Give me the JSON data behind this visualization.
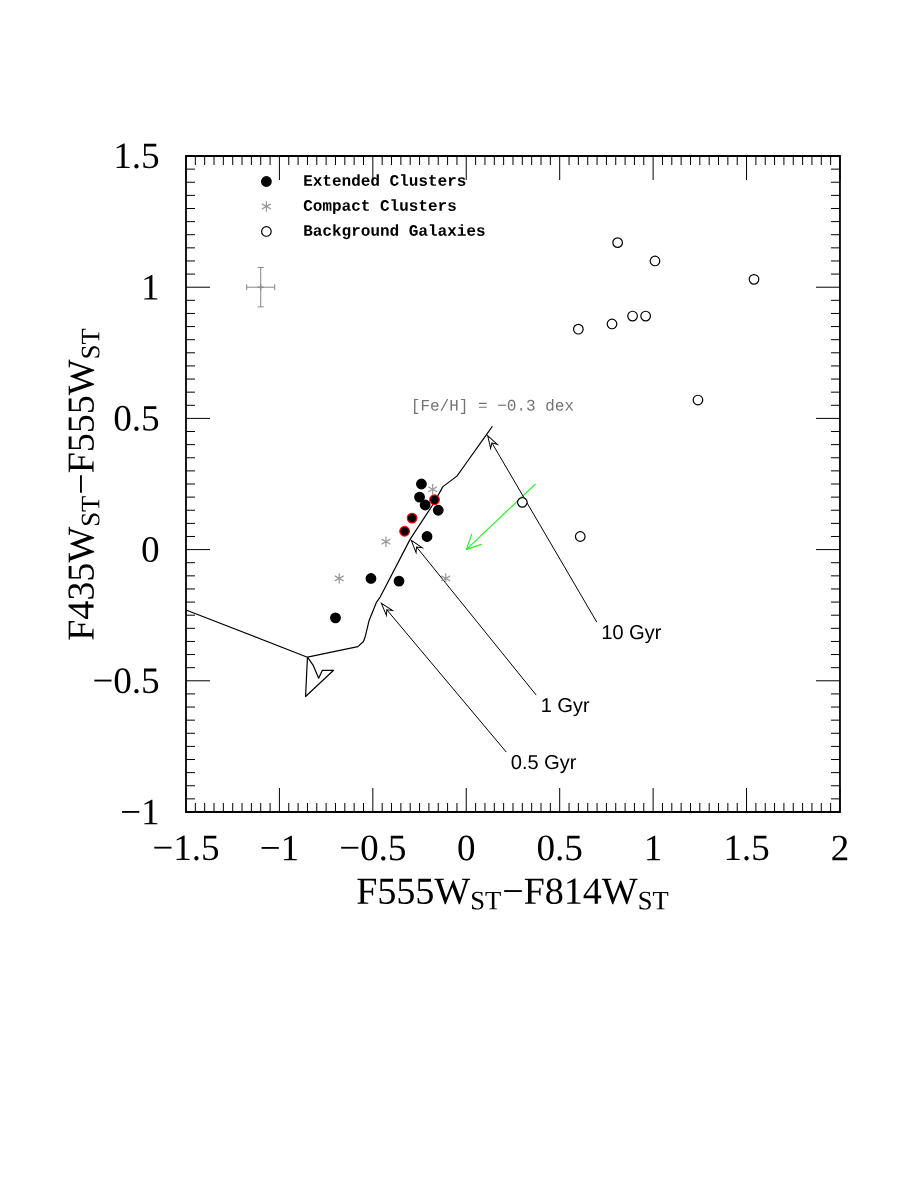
{
  "chart_data": {
    "type": "scatter",
    "xlabel": "F555W$_{ST}$−F814W$_{ST}$",
    "ylabel": "F435W$_{ST}$−F555W$_{ST}$",
    "xlim": [
      -1.5,
      2
    ],
    "ylim": [
      -1,
      1.5
    ],
    "xticks": [
      {
        "value": -1.5,
        "label": "−1.5"
      },
      {
        "value": -1,
        "label": "−1"
      },
      {
        "value": -0.5,
        "label": "−0.5"
      },
      0,
      0.5,
      1,
      1.5,
      2
    ],
    "yticks": [
      {
        "value": -1,
        "label": "−1"
      },
      {
        "value": -0.5,
        "label": "−0.5"
      },
      0,
      0.5,
      1,
      1.5
    ],
    "legend": "top left",
    "annotations": [
      {
        "text": "[Fe/H] = −0.3 dex",
        "x": 0.14,
        "y": 0.47
      },
      {
        "text": "10 Gyr",
        "x": 0.11,
        "y": 0.44
      },
      {
        "text": "1 Gyr",
        "x": -0.3,
        "y": 0.04
      },
      {
        "text": "0.5 Gyr",
        "x": -0.46,
        "y": -0.2
      }
    ],
    "series": [
      {
        "name": "Extended Clusters",
        "marker": "circle",
        "color": "#000000",
        "x": [
          -0.7,
          -0.51,
          -0.36,
          -0.21,
          -0.24,
          -0.25,
          -0.22,
          -0.15
        ],
        "values": [
          -0.26,
          -0.11,
          -0.12,
          0.05,
          0.25,
          0.2,
          0.17,
          0.15
        ]
      },
      {
        "name": "Compact Clusters",
        "marker": "cross",
        "color": "#999999",
        "x": [
          -0.68,
          -0.43,
          -0.11,
          -0.18
        ],
        "values": [
          -0.11,
          0.03,
          -0.11,
          0.23
        ]
      },
      {
        "name": "Background Galaxies",
        "marker": "circle",
        "color": "#000000",
        "x": [
          0.81,
          1.01,
          1.54,
          0.6,
          0.78,
          0.89,
          0.96,
          1.24,
          0.3,
          0.61
        ],
        "values": [
          1.17,
          1.1,
          1.03,
          0.84,
          0.86,
          0.89,
          0.89,
          0.57,
          0.18,
          0.05
        ]
      },
      {
        "marker": "circle",
        "color": "#ff0000",
        "x": [
          -0.33,
          -0.29,
          -0.17
        ],
        "values": [
          0.07,
          0.12,
          0.19
        ]
      },
      {
        "marker": "cross",
        "color": "#888888",
        "x": [
          -1.1
        ],
        "values": [
          1.0
        ],
        "errors": [
          0.075
        ],
        "xerrors": [
          0.075
        ]
      },
      {
        "type": "line",
        "color": "#000000",
        "x": [
          -1.5,
          -0.85,
          -0.86,
          -0.71,
          -0.77,
          -0.79,
          -0.82,
          -0.85,
          -0.58,
          -0.55,
          -0.54,
          -0.52,
          -0.48,
          -0.46,
          -0.3,
          -0.18,
          -0.125,
          -0.05,
          0.0,
          0.11,
          0.14
        ],
        "values": [
          -0.23,
          -0.41,
          -0.56,
          -0.46,
          -0.46,
          -0.49,
          -0.44,
          -0.41,
          -0.37,
          -0.35,
          -0.33,
          -0.27,
          -0.2,
          -0.18,
          0.04,
          0.17,
          0.24,
          0.28,
          0.33,
          0.44,
          0.47
        ]
      },
      {
        "type": "line",
        "color": "#33ee33",
        "x": [
          0.37,
          0.0,
          0.08,
          0.0,
          0.03
        ],
        "values": [
          0.25,
          0.0,
          0.02,
          0.0,
          0.06
        ]
      }
    ]
  }
}
